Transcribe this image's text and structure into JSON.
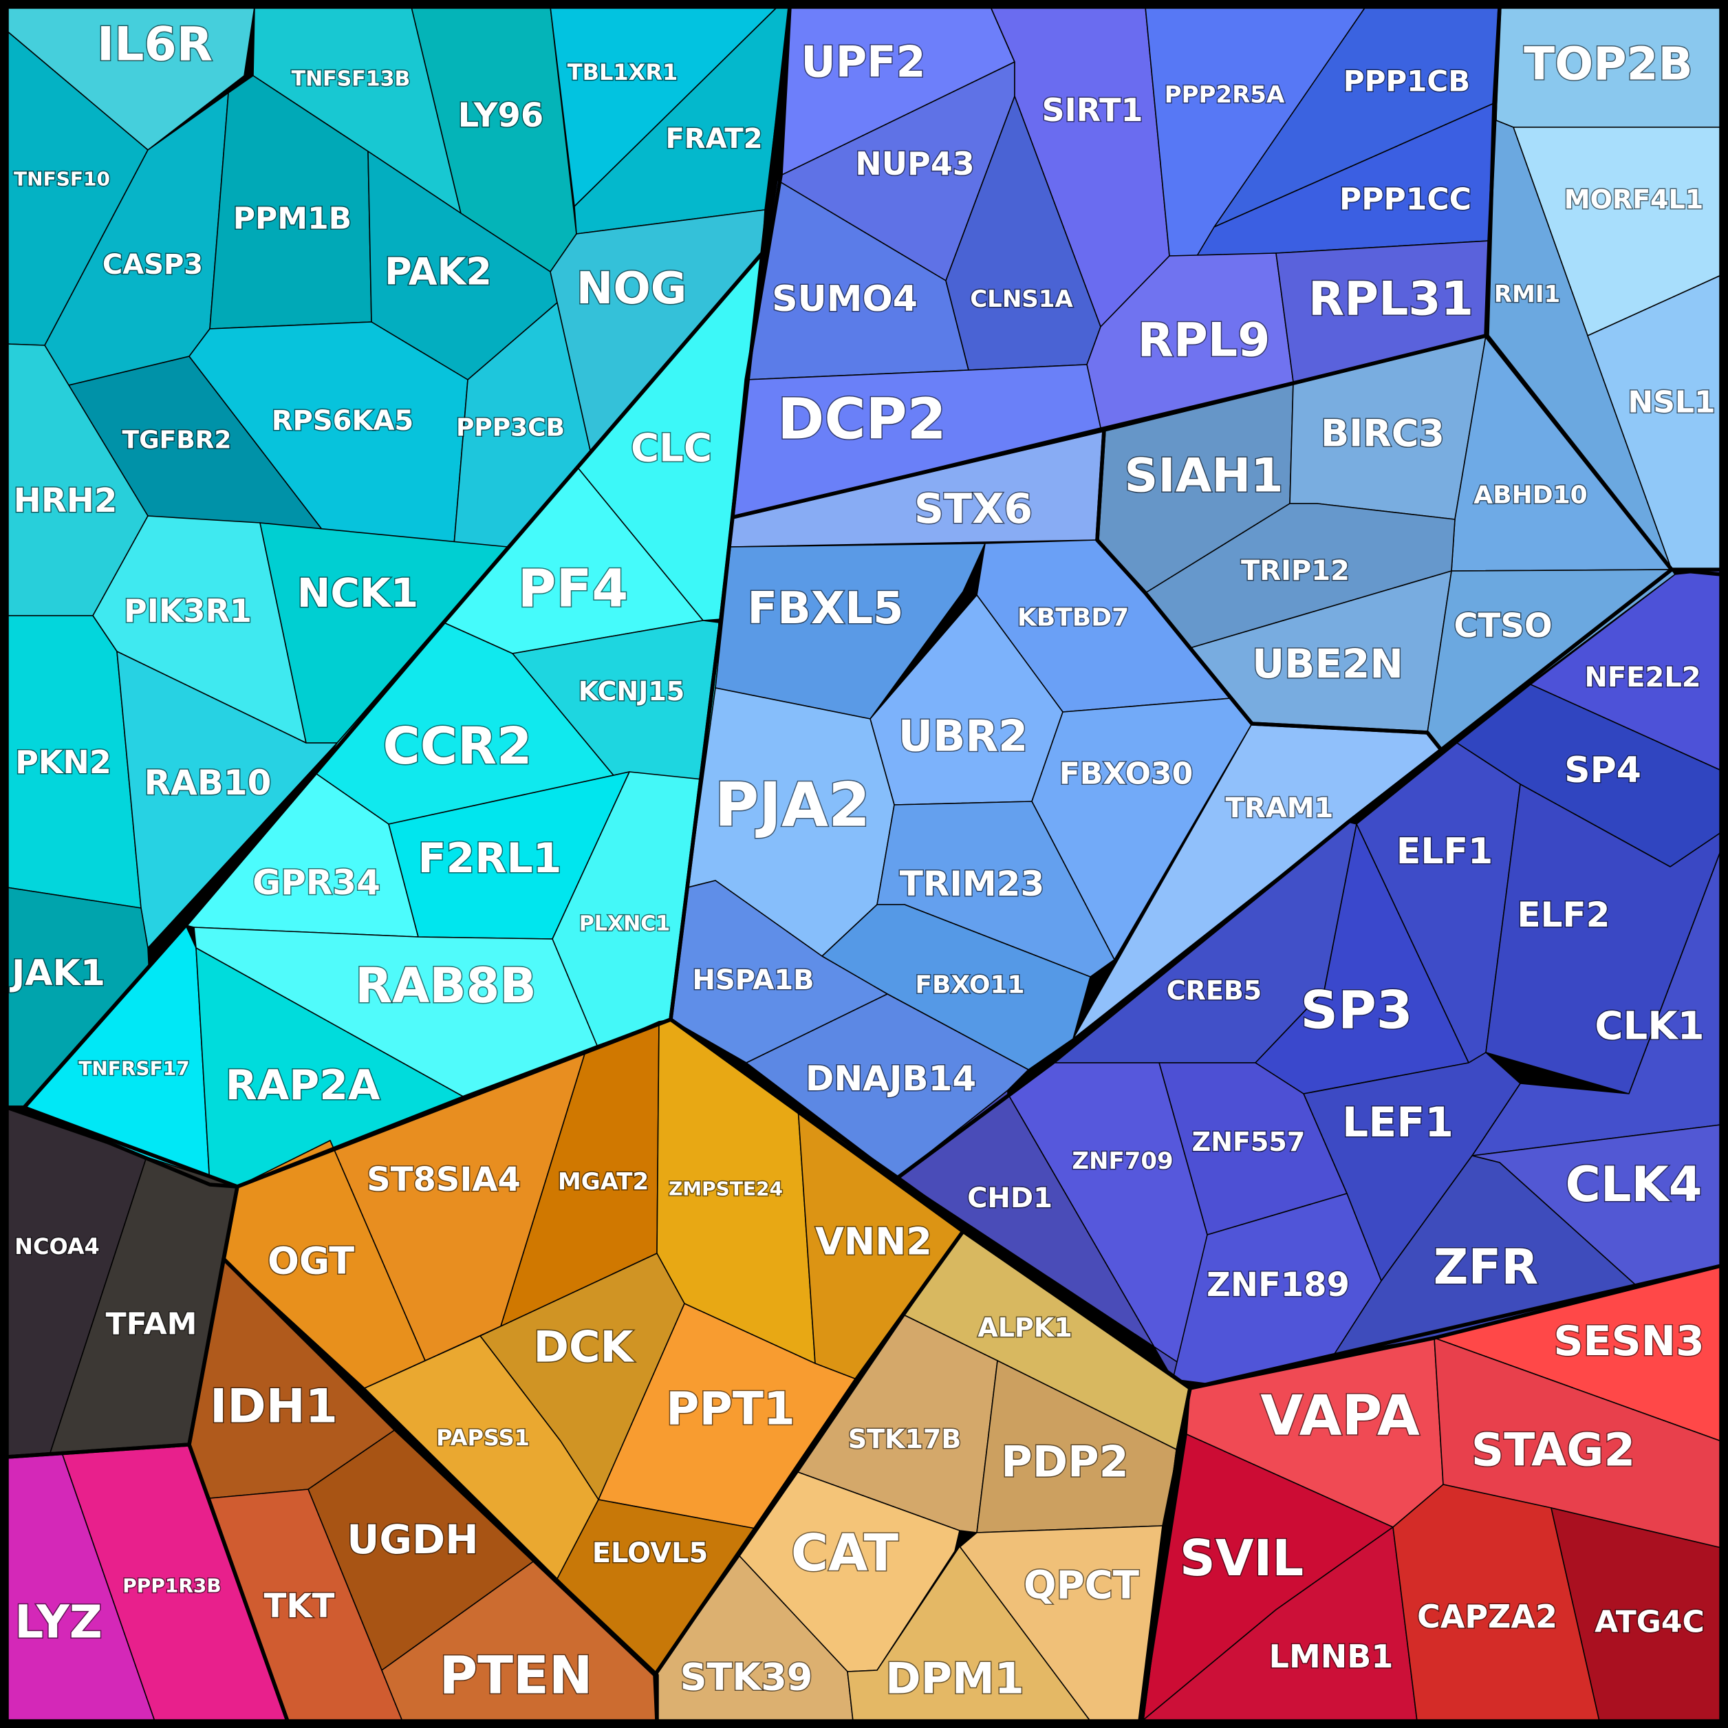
{
  "chart_data": {
    "type": "voronoi-treemap",
    "title": "",
    "groups": [
      {
        "name": "teal",
        "color": "#14c2cf",
        "cells": [
          {
            "label": "IL6R",
            "color": "#45cfdc"
          },
          {
            "label": "TNFSF13B",
            "color": "#18c8d2"
          },
          {
            "label": "LY96",
            "color": "#04b4b8"
          },
          {
            "label": "TBL1XR1",
            "color": "#02c3e0"
          },
          {
            "label": "FRAT2",
            "color": "#04b8cc"
          },
          {
            "label": "TNFSF10",
            "color": "#04b2c4"
          },
          {
            "label": "CASP3",
            "color": "#07b4c8"
          },
          {
            "label": "PPM1B",
            "color": "#00a9b7"
          },
          {
            "label": "PAK2",
            "color": "#03aec0"
          },
          {
            "label": "NOG",
            "color": "#34c1d9"
          },
          {
            "label": "TGFBR2",
            "color": "#0092a8"
          },
          {
            "label": "RPS6KA5",
            "color": "#07c3dc"
          },
          {
            "label": "PPP3CB",
            "color": "#1ec6dc"
          },
          {
            "label": "HRH2",
            "color": "#28cfda"
          },
          {
            "label": "PIK3R1",
            "color": "#3fe9f0"
          },
          {
            "label": "NCK1",
            "color": "#00cfd2"
          },
          {
            "label": "PKN2",
            "color": "#03d6dc"
          },
          {
            "label": "RAB10",
            "color": "#27d2e3"
          },
          {
            "label": "JAK1",
            "color": "#00a4ad"
          }
        ]
      },
      {
        "name": "cyan",
        "color": "#22f2f6",
        "cells": [
          {
            "label": "CLC",
            "color": "#3cf8f8"
          },
          {
            "label": "PF4",
            "color": "#45fbfb"
          },
          {
            "label": "KCNJ15",
            "color": "#1ed6e0"
          },
          {
            "label": "CCR2",
            "color": "#10e9ee"
          },
          {
            "label": "GPR34",
            "color": "#4cfcfd"
          },
          {
            "label": "F2RL1",
            "color": "#00e6ee"
          },
          {
            "label": "PLXNC1",
            "color": "#44f8f8"
          },
          {
            "label": "RAB8B",
            "color": "#50fbfb"
          },
          {
            "label": "TNFRSF17",
            "color": "#00e8f6"
          },
          {
            "label": "RAP2A",
            "color": "#00dcdc"
          }
        ]
      },
      {
        "name": "violet",
        "color": "#6a78ec",
        "cells": [
          {
            "label": "UPF2",
            "color": "#6d7ffa"
          },
          {
            "label": "NUP43",
            "color": "#5f72e6"
          },
          {
            "label": "SIRT1",
            "color": "#6a6cf0"
          },
          {
            "label": "PPP2R5A",
            "color": "#5778f5"
          },
          {
            "label": "PPP1CB",
            "color": "#3b63e0"
          },
          {
            "label": "PPP1CC",
            "color": "#3b5fe2"
          },
          {
            "label": "SUMO4",
            "color": "#5b7ce8"
          },
          {
            "label": "CLNS1A",
            "color": "#4a63d4"
          },
          {
            "label": "RPL9",
            "color": "#7073f0"
          },
          {
            "label": "RPL31",
            "color": "#5a62dc"
          },
          {
            "label": "DCP2",
            "color": "#6a80f8"
          }
        ]
      },
      {
        "name": "skyblue",
        "color": "#8ec8f0",
        "cells": [
          {
            "label": "TOP2B",
            "color": "#8ac8ee"
          },
          {
            "label": "MORF4L1",
            "color": "#a8defc"
          },
          {
            "label": "RMI1",
            "color": "#6ba8e0"
          },
          {
            "label": "NSL1",
            "color": "#90c8f8"
          }
        ]
      },
      {
        "name": "steelblue",
        "color": "#6ea2d6",
        "cells": [
          {
            "label": "SIAH1",
            "color": "#6696c8"
          },
          {
            "label": "BIRC3",
            "color": "#79ade0"
          },
          {
            "label": "ABHD10",
            "color": "#6eaae6"
          },
          {
            "label": "TRIP12",
            "color": "#6698cc"
          },
          {
            "label": "UBE2N",
            "color": "#78ace0"
          },
          {
            "label": "CTSO",
            "color": "#6ba8e0"
          }
        ]
      },
      {
        "name": "lightblue",
        "color": "#74a6f0",
        "cells": [
          {
            "label": "STX6",
            "color": "#88acf4"
          },
          {
            "label": "FBXL5",
            "color": "#5a9ae6"
          },
          {
            "label": "KBTBD7",
            "color": "#6aa0f6"
          },
          {
            "label": "UBR2",
            "color": "#7cb2fb"
          },
          {
            "label": "FBXO30",
            "color": "#72aaf8"
          },
          {
            "label": "TRAM1",
            "color": "#90c0fb"
          },
          {
            "label": "PJA2",
            "color": "#86befb"
          },
          {
            "label": "TRIM23",
            "color": "#64a0ee"
          },
          {
            "label": "FBXO11",
            "color": "#5599e6"
          },
          {
            "label": "HSPA1B",
            "color": "#5f8ee8"
          },
          {
            "label": "DNAJB14",
            "color": "#5c88e4"
          }
        ]
      },
      {
        "name": "indigo",
        "color": "#4650cc",
        "cells": [
          {
            "label": "NFE2L2",
            "color": "#4d52d8"
          },
          {
            "label": "SP4",
            "color": "#3045c0"
          },
          {
            "label": "ELF1",
            "color": "#3e4cc8"
          },
          {
            "label": "ELF2",
            "color": "#3a48c4"
          },
          {
            "label": "CREB5",
            "color": "#4150c8"
          },
          {
            "label": "SP3",
            "color": "#3a48cc"
          },
          {
            "label": "CLK1",
            "color": "#4450cc"
          },
          {
            "label": "LEF1",
            "color": "#3d4ac4"
          },
          {
            "label": "ZNF557",
            "color": "#4d50d4"
          },
          {
            "label": "ZNF709",
            "color": "#5658dc"
          },
          {
            "label": "CHD1",
            "color": "#4a4cb8"
          },
          {
            "label": "ZNF189",
            "color": "#5055d8"
          },
          {
            "label": "CLK4",
            "color": "#5258d4"
          },
          {
            "label": "ZFR",
            "color": "#3e4cbc"
          }
        ]
      },
      {
        "name": "red",
        "color": "#e03040",
        "cells": [
          {
            "label": "SESN3",
            "color": "#ff4848"
          },
          {
            "label": "VAPA",
            "color": "#f04a54"
          },
          {
            "label": "STAG2",
            "color": "#e8404c"
          },
          {
            "label": "SVIL",
            "color": "#cc0c34"
          },
          {
            "label": "LMNB1",
            "color": "#cc1038"
          },
          {
            "label": "CAPZA2",
            "color": "#d42c28"
          },
          {
            "label": "ATG4C",
            "color": "#aa1020"
          }
        ]
      },
      {
        "name": "gold",
        "color": "#d8b060",
        "cells": [
          {
            "label": "ALPK1",
            "color": "#d8b860"
          },
          {
            "label": "STK17B",
            "color": "#d4a86a"
          },
          {
            "label": "PDP2",
            "color": "#cca060"
          },
          {
            "label": "CAT",
            "color": "#f4c478"
          },
          {
            "label": "QPCT",
            "color": "#f0c078"
          },
          {
            "label": "STK39",
            "color": "#dcb070"
          },
          {
            "label": "DPM1",
            "color": "#e4b865"
          }
        ]
      },
      {
        "name": "orange",
        "color": "#e89020",
        "cells": [
          {
            "label": "ST8SIA4",
            "color": "#e88e20"
          },
          {
            "label": "MGAT2",
            "color": "#d07800"
          },
          {
            "label": "ZMPSTE24",
            "color": "#e8a814"
          },
          {
            "label": "VNN2",
            "color": "#dc9414"
          },
          {
            "label": "OGT",
            "color": "#e8901c"
          },
          {
            "label": "DCK",
            "color": "#d09424"
          },
          {
            "label": "PAPSS1",
            "color": "#eaa830"
          },
          {
            "label": "PPT1",
            "color": "#f89c30"
          },
          {
            "label": "ELOVL5",
            "color": "#c87808"
          }
        ]
      },
      {
        "name": "brown",
        "color": "#b45820",
        "cells": [
          {
            "label": "IDH1",
            "color": "#b05a1c"
          },
          {
            "label": "UGDH",
            "color": "#a85414"
          },
          {
            "label": "TKT",
            "color": "#d05c30"
          },
          {
            "label": "PTEN",
            "color": "#cc6c30"
          }
        ]
      },
      {
        "name": "dark",
        "color": "#353035",
        "cells": [
          {
            "label": "NCOA4",
            "color": "#342c34"
          },
          {
            "label": "TFAM",
            "color": "#3c3834"
          }
        ]
      },
      {
        "name": "magenta",
        "color": "#e024a0",
        "cells": [
          {
            "label": "LYZ",
            "color": "#d428b8"
          },
          {
            "label": "PPP1R3B",
            "color": "#e8208c"
          }
        ]
      }
    ]
  }
}
